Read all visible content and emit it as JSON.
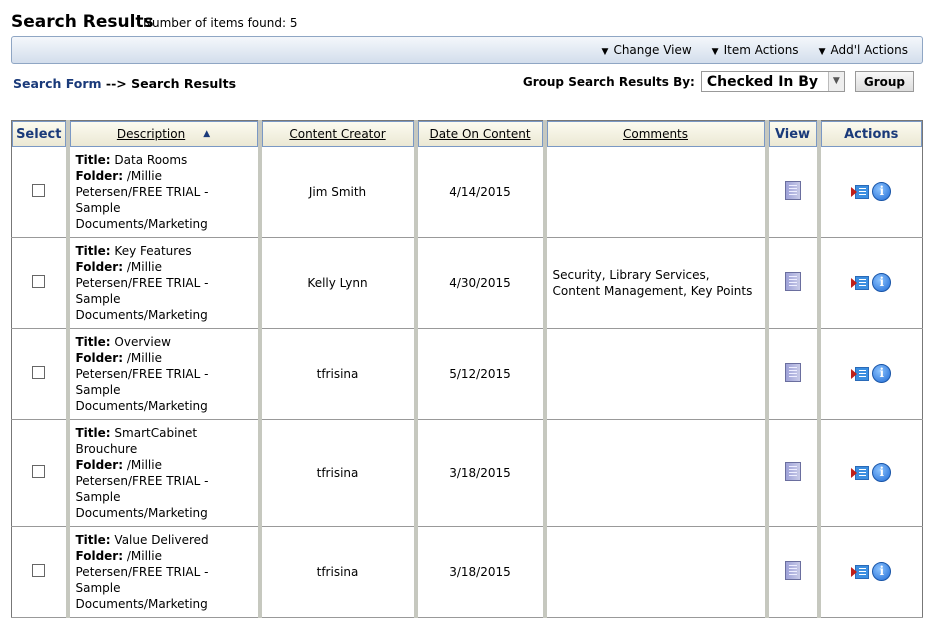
{
  "header": {
    "title": "Search Results",
    "count": "Number of items found: 5"
  },
  "toolbar": {
    "items": [
      {
        "label": "Change View",
        "icon": "chevron-down-icon"
      },
      {
        "label": "Item Actions",
        "icon": "chevron-down-icon"
      },
      {
        "label": "Add'l Actions",
        "icon": "chevron-down-icon"
      }
    ]
  },
  "breadcrumb": {
    "link": "Search Form",
    "sep": " --> ",
    "current": "Search Results"
  },
  "group": {
    "label": "Group Search Results By:",
    "selected": "Checked In By",
    "button": "Group"
  },
  "table": {
    "columns": [
      "Select",
      "Description",
      "Content Creator",
      "Date On Content",
      "Comments",
      "View",
      "Actions"
    ],
    "sort": {
      "column": "Description",
      "direction": "ascending"
    },
    "labels": {
      "title": "Title:",
      "folder": "Folder:"
    },
    "rows": [
      {
        "title": "Data Rooms",
        "folder": "/Millie Petersen/FREE TRIAL - Sample Documents/Marketing",
        "creator": "Jim Smith",
        "date": "4/14/2015",
        "comments": ""
      },
      {
        "title": "Key Features",
        "folder": "/Millie Petersen/FREE TRIAL - Sample Documents/Marketing",
        "creator": "Kelly Lynn",
        "date": "4/30/2015",
        "comments": "Security, Library Services, Content Management, Key Points"
      },
      {
        "title": "Overview",
        "folder": "/Millie Petersen/FREE TRIAL - Sample Documents/Marketing",
        "creator": "tfrisina",
        "date": "5/12/2015",
        "comments": ""
      },
      {
        "title": "SmartCabinet Brouchure",
        "folder": "/Millie Petersen/FREE TRIAL - Sample Documents/Marketing",
        "creator": "tfrisina",
        "date": "3/18/2015",
        "comments": ""
      },
      {
        "title": "Value Delivered",
        "folder": "/Millie Petersen/FREE TRIAL - Sample Documents/Marketing",
        "creator": "tfrisina",
        "date": "3/18/2015",
        "comments": ""
      }
    ]
  }
}
